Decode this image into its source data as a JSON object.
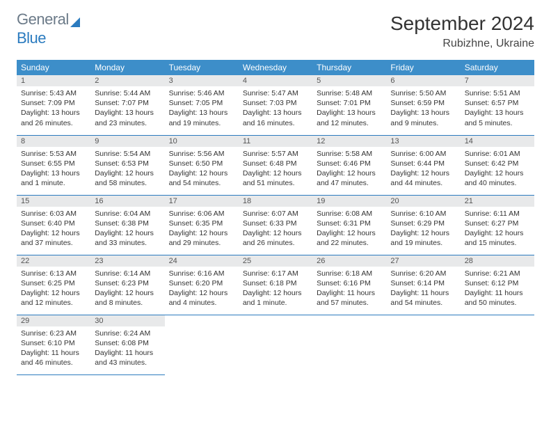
{
  "logo": {
    "word1": "General",
    "word2": "Blue"
  },
  "month_title": "September 2024",
  "location": "Rubizhne, Ukraine",
  "header_bg": "#3d8ec9",
  "rule_color": "#2b7bbf",
  "daynum_bg": "#e8e9ea",
  "weekdays": [
    "Sunday",
    "Monday",
    "Tuesday",
    "Wednesday",
    "Thursday",
    "Friday",
    "Saturday"
  ],
  "weeks": [
    [
      {
        "n": "1",
        "sr": "Sunrise: 5:43 AM",
        "ss": "Sunset: 7:09 PM",
        "d1": "Daylight: 13 hours",
        "d2": "and 26 minutes."
      },
      {
        "n": "2",
        "sr": "Sunrise: 5:44 AM",
        "ss": "Sunset: 7:07 PM",
        "d1": "Daylight: 13 hours",
        "d2": "and 23 minutes."
      },
      {
        "n": "3",
        "sr": "Sunrise: 5:46 AM",
        "ss": "Sunset: 7:05 PM",
        "d1": "Daylight: 13 hours",
        "d2": "and 19 minutes."
      },
      {
        "n": "4",
        "sr": "Sunrise: 5:47 AM",
        "ss": "Sunset: 7:03 PM",
        "d1": "Daylight: 13 hours",
        "d2": "and 16 minutes."
      },
      {
        "n": "5",
        "sr": "Sunrise: 5:48 AM",
        "ss": "Sunset: 7:01 PM",
        "d1": "Daylight: 13 hours",
        "d2": "and 12 minutes."
      },
      {
        "n": "6",
        "sr": "Sunrise: 5:50 AM",
        "ss": "Sunset: 6:59 PM",
        "d1": "Daylight: 13 hours",
        "d2": "and 9 minutes."
      },
      {
        "n": "7",
        "sr": "Sunrise: 5:51 AM",
        "ss": "Sunset: 6:57 PM",
        "d1": "Daylight: 13 hours",
        "d2": "and 5 minutes."
      }
    ],
    [
      {
        "n": "8",
        "sr": "Sunrise: 5:53 AM",
        "ss": "Sunset: 6:55 PM",
        "d1": "Daylight: 13 hours",
        "d2": "and 1 minute."
      },
      {
        "n": "9",
        "sr": "Sunrise: 5:54 AM",
        "ss": "Sunset: 6:53 PM",
        "d1": "Daylight: 12 hours",
        "d2": "and 58 minutes."
      },
      {
        "n": "10",
        "sr": "Sunrise: 5:56 AM",
        "ss": "Sunset: 6:50 PM",
        "d1": "Daylight: 12 hours",
        "d2": "and 54 minutes."
      },
      {
        "n": "11",
        "sr": "Sunrise: 5:57 AM",
        "ss": "Sunset: 6:48 PM",
        "d1": "Daylight: 12 hours",
        "d2": "and 51 minutes."
      },
      {
        "n": "12",
        "sr": "Sunrise: 5:58 AM",
        "ss": "Sunset: 6:46 PM",
        "d1": "Daylight: 12 hours",
        "d2": "and 47 minutes."
      },
      {
        "n": "13",
        "sr": "Sunrise: 6:00 AM",
        "ss": "Sunset: 6:44 PM",
        "d1": "Daylight: 12 hours",
        "d2": "and 44 minutes."
      },
      {
        "n": "14",
        "sr": "Sunrise: 6:01 AM",
        "ss": "Sunset: 6:42 PM",
        "d1": "Daylight: 12 hours",
        "d2": "and 40 minutes."
      }
    ],
    [
      {
        "n": "15",
        "sr": "Sunrise: 6:03 AM",
        "ss": "Sunset: 6:40 PM",
        "d1": "Daylight: 12 hours",
        "d2": "and 37 minutes."
      },
      {
        "n": "16",
        "sr": "Sunrise: 6:04 AM",
        "ss": "Sunset: 6:38 PM",
        "d1": "Daylight: 12 hours",
        "d2": "and 33 minutes."
      },
      {
        "n": "17",
        "sr": "Sunrise: 6:06 AM",
        "ss": "Sunset: 6:35 PM",
        "d1": "Daylight: 12 hours",
        "d2": "and 29 minutes."
      },
      {
        "n": "18",
        "sr": "Sunrise: 6:07 AM",
        "ss": "Sunset: 6:33 PM",
        "d1": "Daylight: 12 hours",
        "d2": "and 26 minutes."
      },
      {
        "n": "19",
        "sr": "Sunrise: 6:08 AM",
        "ss": "Sunset: 6:31 PM",
        "d1": "Daylight: 12 hours",
        "d2": "and 22 minutes."
      },
      {
        "n": "20",
        "sr": "Sunrise: 6:10 AM",
        "ss": "Sunset: 6:29 PM",
        "d1": "Daylight: 12 hours",
        "d2": "and 19 minutes."
      },
      {
        "n": "21",
        "sr": "Sunrise: 6:11 AM",
        "ss": "Sunset: 6:27 PM",
        "d1": "Daylight: 12 hours",
        "d2": "and 15 minutes."
      }
    ],
    [
      {
        "n": "22",
        "sr": "Sunrise: 6:13 AM",
        "ss": "Sunset: 6:25 PM",
        "d1": "Daylight: 12 hours",
        "d2": "and 12 minutes."
      },
      {
        "n": "23",
        "sr": "Sunrise: 6:14 AM",
        "ss": "Sunset: 6:23 PM",
        "d1": "Daylight: 12 hours",
        "d2": "and 8 minutes."
      },
      {
        "n": "24",
        "sr": "Sunrise: 6:16 AM",
        "ss": "Sunset: 6:20 PM",
        "d1": "Daylight: 12 hours",
        "d2": "and 4 minutes."
      },
      {
        "n": "25",
        "sr": "Sunrise: 6:17 AM",
        "ss": "Sunset: 6:18 PM",
        "d1": "Daylight: 12 hours",
        "d2": "and 1 minute."
      },
      {
        "n": "26",
        "sr": "Sunrise: 6:18 AM",
        "ss": "Sunset: 6:16 PM",
        "d1": "Daylight: 11 hours",
        "d2": "and 57 minutes."
      },
      {
        "n": "27",
        "sr": "Sunrise: 6:20 AM",
        "ss": "Sunset: 6:14 PM",
        "d1": "Daylight: 11 hours",
        "d2": "and 54 minutes."
      },
      {
        "n": "28",
        "sr": "Sunrise: 6:21 AM",
        "ss": "Sunset: 6:12 PM",
        "d1": "Daylight: 11 hours",
        "d2": "and 50 minutes."
      }
    ],
    [
      {
        "n": "29",
        "sr": "Sunrise: 6:23 AM",
        "ss": "Sunset: 6:10 PM",
        "d1": "Daylight: 11 hours",
        "d2": "and 46 minutes."
      },
      {
        "n": "30",
        "sr": "Sunrise: 6:24 AM",
        "ss": "Sunset: 6:08 PM",
        "d1": "Daylight: 11 hours",
        "d2": "and 43 minutes."
      },
      null,
      null,
      null,
      null,
      null
    ]
  ]
}
